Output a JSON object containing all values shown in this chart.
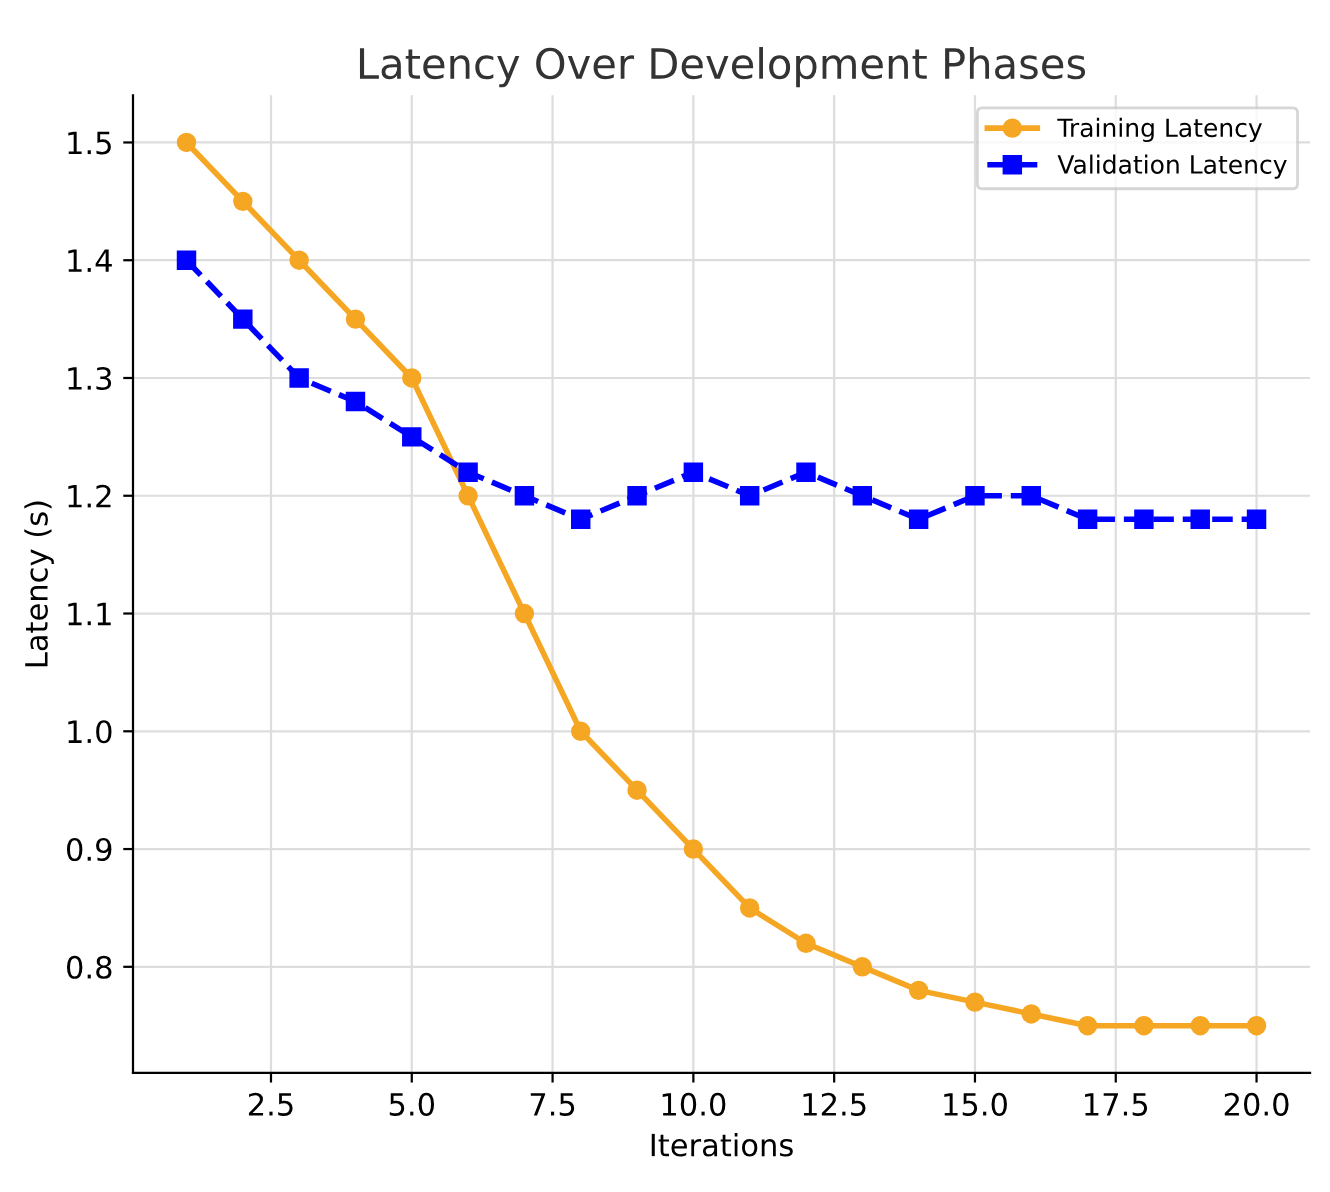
{
  "chart_data": {
    "type": "line",
    "title": "Latency Over Development Phases",
    "xlabel": "Iterations",
    "ylabel": "Latency (s)",
    "x": [
      1,
      2,
      3,
      4,
      5,
      6,
      7,
      8,
      9,
      10,
      11,
      12,
      13,
      14,
      15,
      16,
      17,
      18,
      19,
      20
    ],
    "series": [
      {
        "name": "Training Latency",
        "color": "#f5a623",
        "marker": "circle",
        "line_style": "solid",
        "values": [
          1.5,
          1.45,
          1.4,
          1.35,
          1.3,
          1.2,
          1.1,
          1.0,
          0.95,
          0.9,
          0.85,
          0.82,
          0.8,
          0.78,
          0.77,
          0.76,
          0.75,
          0.75,
          0.75,
          0.75
        ]
      },
      {
        "name": "Validation Latency",
        "color": "#0000ff",
        "marker": "square",
        "line_style": "dashed",
        "values": [
          1.4,
          1.35,
          1.3,
          1.28,
          1.25,
          1.22,
          1.2,
          1.18,
          1.2,
          1.22,
          1.2,
          1.22,
          1.2,
          1.18,
          1.2,
          1.2,
          1.18,
          1.18,
          1.18,
          1.18
        ]
      }
    ],
    "xlim": [
      0.05,
      20.95
    ],
    "xticks": [
      {
        "value": 2.5,
        "label": "2.5"
      },
      {
        "value": 5,
        "label": "5.0"
      },
      {
        "value": 7.5,
        "label": "7.5"
      },
      {
        "value": 10,
        "label": "10.0"
      },
      {
        "value": 12.5,
        "label": "12.5"
      },
      {
        "value": 15,
        "label": "15.0"
      },
      {
        "value": 17.5,
        "label": "17.5"
      },
      {
        "value": 20,
        "label": "20.0"
      }
    ],
    "ylim": [
      0.71,
      1.54
    ],
    "yticks": [
      0.8,
      0.9,
      {
        "value": 1.0,
        "label": "1.0"
      },
      1.1,
      1.2,
      1.3,
      1.4,
      1.5
    ],
    "grid": true,
    "legend": "top right"
  }
}
